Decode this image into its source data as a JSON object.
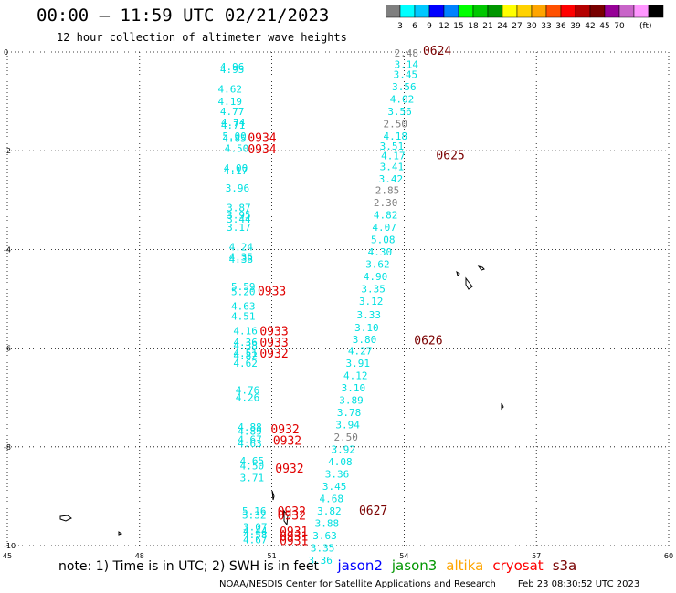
{
  "title": "00:00 — 11:59 UTC 02/21/2023",
  "subtitle": "12 hour collection of altimeter wave heights",
  "colorbar": {
    "colors": [
      "#7f7f7f",
      "#00ffff",
      "#00c8ff",
      "#0000ff",
      "#0082ff",
      "#00ff00",
      "#00c800",
      "#009600",
      "#ffff00",
      "#ffd200",
      "#ffa500",
      "#ff5000",
      "#ff0000",
      "#b40000",
      "#780000",
      "#960096",
      "#c864c8",
      "#ff96ff",
      "#000000"
    ],
    "labels": [
      "3",
      "6",
      "9",
      "12",
      "15",
      "18",
      "21",
      "24",
      "27",
      "30",
      "33",
      "36",
      "39",
      "42",
      "45",
      "70"
    ],
    "unit": "(ft)"
  },
  "legend": {
    "note": "note: 1) Time is in UTC; 2) SWH is in feet",
    "satellites": [
      {
        "name": "jason2",
        "color": "#0000ff"
      },
      {
        "name": "jason3",
        "color": "#009600"
      },
      {
        "name": "altika",
        "color": "#ffa500"
      },
      {
        "name": "cryosat",
        "color": "#ff0000"
      },
      {
        "name": "s3a",
        "color": "#780000"
      }
    ]
  },
  "credit": "NOAA/NESDIS Center for Satellite Applications and Research",
  "timestamp": "Feb 23 08:30:52 UTC 2023",
  "chart_data": {
    "type": "scatter",
    "x_ticks": [
      45,
      48,
      51,
      54,
      57,
      60
    ],
    "y_ticks": [
      0,
      -2,
      -4,
      -6,
      -8,
      -10
    ],
    "xlim": [
      45,
      60
    ],
    "ylim": [
      -10,
      0
    ],
    "grid": true,
    "series": [
      {
        "name": "cryosat",
        "color": "#00e0e0",
        "points": [
          {
            "x": 50.1,
            "y": -0.3,
            "v": "4.96"
          },
          {
            "x": 50.1,
            "y": -0.35,
            "v": "4.95"
          },
          {
            "x": 50.05,
            "y": -0.75,
            "v": "4.62"
          },
          {
            "x": 50.05,
            "y": -1.0,
            "v": "4.19"
          },
          {
            "x": 50.1,
            "y": -1.2,
            "v": "4.77"
          },
          {
            "x": 50.12,
            "y": -1.42,
            "v": "4.74"
          },
          {
            "x": 50.12,
            "y": -1.48,
            "v": "4.71"
          },
          {
            "x": 50.15,
            "y": -1.7,
            "v": "5.00"
          },
          {
            "x": 50.15,
            "y": -1.75,
            "v": "4.85"
          },
          {
            "x": 50.2,
            "y": -1.95,
            "v": "4.50"
          },
          {
            "x": 50.18,
            "y": -2.35,
            "v": "4.00"
          },
          {
            "x": 50.18,
            "y": -2.4,
            "v": "4.17"
          },
          {
            "x": 50.22,
            "y": -2.75,
            "v": "3.96"
          },
          {
            "x": 50.25,
            "y": -3.15,
            "v": "3.87"
          },
          {
            "x": 50.25,
            "y": -3.3,
            "v": "3.95"
          },
          {
            "x": 50.25,
            "y": -3.38,
            "v": "3.44"
          },
          {
            "x": 50.25,
            "y": -3.55,
            "v": "3.17"
          },
          {
            "x": 50.3,
            "y": -3.95,
            "v": "4.24"
          },
          {
            "x": 50.3,
            "y": -4.15,
            "v": "4.35"
          },
          {
            "x": 50.3,
            "y": -4.2,
            "v": "4.38"
          },
          {
            "x": 50.35,
            "y": -4.75,
            "v": "5.59"
          },
          {
            "x": 50.35,
            "y": -4.85,
            "v": "5.20"
          },
          {
            "x": 50.35,
            "y": -5.15,
            "v": "4.63"
          },
          {
            "x": 50.35,
            "y": -5.35,
            "v": "4.51"
          },
          {
            "x": 50.4,
            "y": -5.65,
            "v": "4.16"
          },
          {
            "x": 50.4,
            "y": -5.88,
            "v": "4.36"
          },
          {
            "x": 50.4,
            "y": -5.94,
            "v": "4.38"
          },
          {
            "x": 50.4,
            "y": -6.1,
            "v": "4.51"
          },
          {
            "x": 50.4,
            "y": -6.15,
            "v": "4.82"
          },
          {
            "x": 50.4,
            "y": -6.3,
            "v": "4.62"
          },
          {
            "x": 50.45,
            "y": -6.85,
            "v": "4.76"
          },
          {
            "x": 50.45,
            "y": -7.0,
            "v": "4.26"
          },
          {
            "x": 50.5,
            "y": -7.6,
            "v": "4.88"
          },
          {
            "x": 50.5,
            "y": -7.68,
            "v": "4.89"
          },
          {
            "x": 50.5,
            "y": -7.85,
            "v": "4.67"
          },
          {
            "x": 50.5,
            "y": -7.93,
            "v": "4.63"
          },
          {
            "x": 50.55,
            "y": -8.28,
            "v": "4.65"
          },
          {
            "x": 50.55,
            "y": -8.38,
            "v": "4.50"
          },
          {
            "x": 50.55,
            "y": -8.62,
            "v": "3.71"
          },
          {
            "x": 50.6,
            "y": -9.3,
            "v": "5.16"
          },
          {
            "x": 50.6,
            "y": -9.38,
            "v": "3.32"
          },
          {
            "x": 50.62,
            "y": -9.62,
            "v": "3.07"
          },
          {
            "x": 50.62,
            "y": -9.7,
            "v": "4.44"
          },
          {
            "x": 50.62,
            "y": -9.78,
            "v": "4.58"
          },
          {
            "x": 50.62,
            "y": -9.88,
            "v": "4.67"
          }
        ],
        "passes": [
          {
            "x": 50.78,
            "y": -1.75,
            "label": "0934",
            "color": "#e00000"
          },
          {
            "x": 50.78,
            "y": -1.98,
            "label": "0934",
            "color": "#e00000"
          },
          {
            "x": 51.0,
            "y": -4.85,
            "label": "0933",
            "color": "#e00000"
          },
          {
            "x": 51.05,
            "y": -5.67,
            "label": "0933",
            "color": "#e00000"
          },
          {
            "x": 51.05,
            "y": -5.9,
            "label": "0933",
            "color": "#e00000"
          },
          {
            "x": 51.05,
            "y": -6.12,
            "label": "0932",
            "color": "#e00000"
          },
          {
            "x": 51.3,
            "y": -7.65,
            "label": "0932",
            "color": "#e00000"
          },
          {
            "x": 51.35,
            "y": -7.88,
            "label": "0932",
            "color": "#e00000"
          },
          {
            "x": 51.4,
            "y": -8.45,
            "label": "0932",
            "color": "#e00000"
          },
          {
            "x": 51.45,
            "y": -9.32,
            "label": "0932",
            "color": "#e00000"
          },
          {
            "x": 51.45,
            "y": -9.4,
            "label": "0932",
            "color": "#e00000"
          },
          {
            "x": 51.5,
            "y": -9.72,
            "label": "0931",
            "color": "#e00000"
          },
          {
            "x": 51.5,
            "y": -9.82,
            "label": "0931",
            "color": "#e00000"
          },
          {
            "x": 51.5,
            "y": -9.92,
            "label": "0931",
            "color": "#e00000"
          }
        ]
      },
      {
        "name": "s3a",
        "color": "#00e0e0",
        "points": [
          {
            "x": 54.05,
            "y": -0.02,
            "v": "2.48"
          },
          {
            "x": 54.05,
            "y": -0.25,
            "v": "3.14"
          },
          {
            "x": 54.03,
            "y": -0.45,
            "v": "3.45"
          },
          {
            "x": 54.0,
            "y": -0.7,
            "v": "3.56"
          },
          {
            "x": 53.95,
            "y": -0.95,
            "v": "4.02"
          },
          {
            "x": 53.9,
            "y": -1.2,
            "v": "3.56"
          },
          {
            "x": 53.8,
            "y": -1.45,
            "v": "2.50"
          },
          {
            "x": 53.8,
            "y": -1.7,
            "v": "4.18"
          },
          {
            "x": 53.72,
            "y": -1.9,
            "v": "3.51"
          },
          {
            "x": 53.75,
            "y": -2.1,
            "v": "4.17"
          },
          {
            "x": 53.72,
            "y": -2.32,
            "v": "3.41"
          },
          {
            "x": 53.7,
            "y": -2.57,
            "v": "3.42"
          },
          {
            "x": 53.62,
            "y": -2.8,
            "v": "2.85"
          },
          {
            "x": 53.58,
            "y": -3.05,
            "v": "2.30"
          },
          {
            "x": 53.58,
            "y": -3.3,
            "v": "4.82"
          },
          {
            "x": 53.55,
            "y": -3.55,
            "v": "4.07"
          },
          {
            "x": 53.52,
            "y": -3.8,
            "v": "5.08"
          },
          {
            "x": 53.45,
            "y": -4.05,
            "v": "4.30"
          },
          {
            "x": 53.4,
            "y": -4.3,
            "v": "3.62"
          },
          {
            "x": 53.35,
            "y": -4.55,
            "v": "4.90"
          },
          {
            "x": 53.3,
            "y": -4.8,
            "v": "3.35"
          },
          {
            "x": 53.25,
            "y": -5.05,
            "v": "3.12"
          },
          {
            "x": 53.2,
            "y": -5.32,
            "v": "3.33"
          },
          {
            "x": 53.15,
            "y": -5.58,
            "v": "3.10"
          },
          {
            "x": 53.1,
            "y": -5.82,
            "v": "3.80"
          },
          {
            "x": 53.0,
            "y": -6.05,
            "v": "4.27"
          },
          {
            "x": 52.95,
            "y": -6.3,
            "v": "3.91"
          },
          {
            "x": 52.9,
            "y": -6.55,
            "v": "4.12"
          },
          {
            "x": 52.85,
            "y": -6.8,
            "v": "3.10"
          },
          {
            "x": 52.8,
            "y": -7.05,
            "v": "3.89"
          },
          {
            "x": 52.75,
            "y": -7.3,
            "v": "3.78"
          },
          {
            "x": 52.72,
            "y": -7.55,
            "v": "3.94"
          },
          {
            "x": 52.68,
            "y": -7.8,
            "v": "2.50"
          },
          {
            "x": 52.62,
            "y": -8.05,
            "v": "3.92"
          },
          {
            "x": 52.55,
            "y": -8.3,
            "v": "4.08"
          },
          {
            "x": 52.48,
            "y": -8.55,
            "v": "3.36"
          },
          {
            "x": 52.42,
            "y": -8.8,
            "v": "3.45"
          },
          {
            "x": 52.35,
            "y": -9.05,
            "v": "4.68"
          },
          {
            "x": 52.3,
            "y": -9.3,
            "v": "3.82"
          },
          {
            "x": 52.25,
            "y": -9.55,
            "v": "3.88"
          },
          {
            "x": 52.2,
            "y": -9.8,
            "v": "3.63"
          },
          {
            "x": 52.15,
            "y": -10.05,
            "v": "3.35"
          },
          {
            "x": 52.1,
            "y": -10.3,
            "v": "3.36"
          }
        ],
        "passes": [
          {
            "x": 54.75,
            "y": 0.02,
            "label": "0624",
            "color": "#7a0000"
          },
          {
            "x": 55.05,
            "y": -2.1,
            "label": "0625",
            "color": "#7a0000"
          },
          {
            "x": 54.55,
            "y": -5.85,
            "label": "0626",
            "color": "#7a0000"
          },
          {
            "x": 53.3,
            "y": -9.3,
            "label": "0627",
            "color": "#7a0000"
          }
        ]
      }
    ]
  }
}
